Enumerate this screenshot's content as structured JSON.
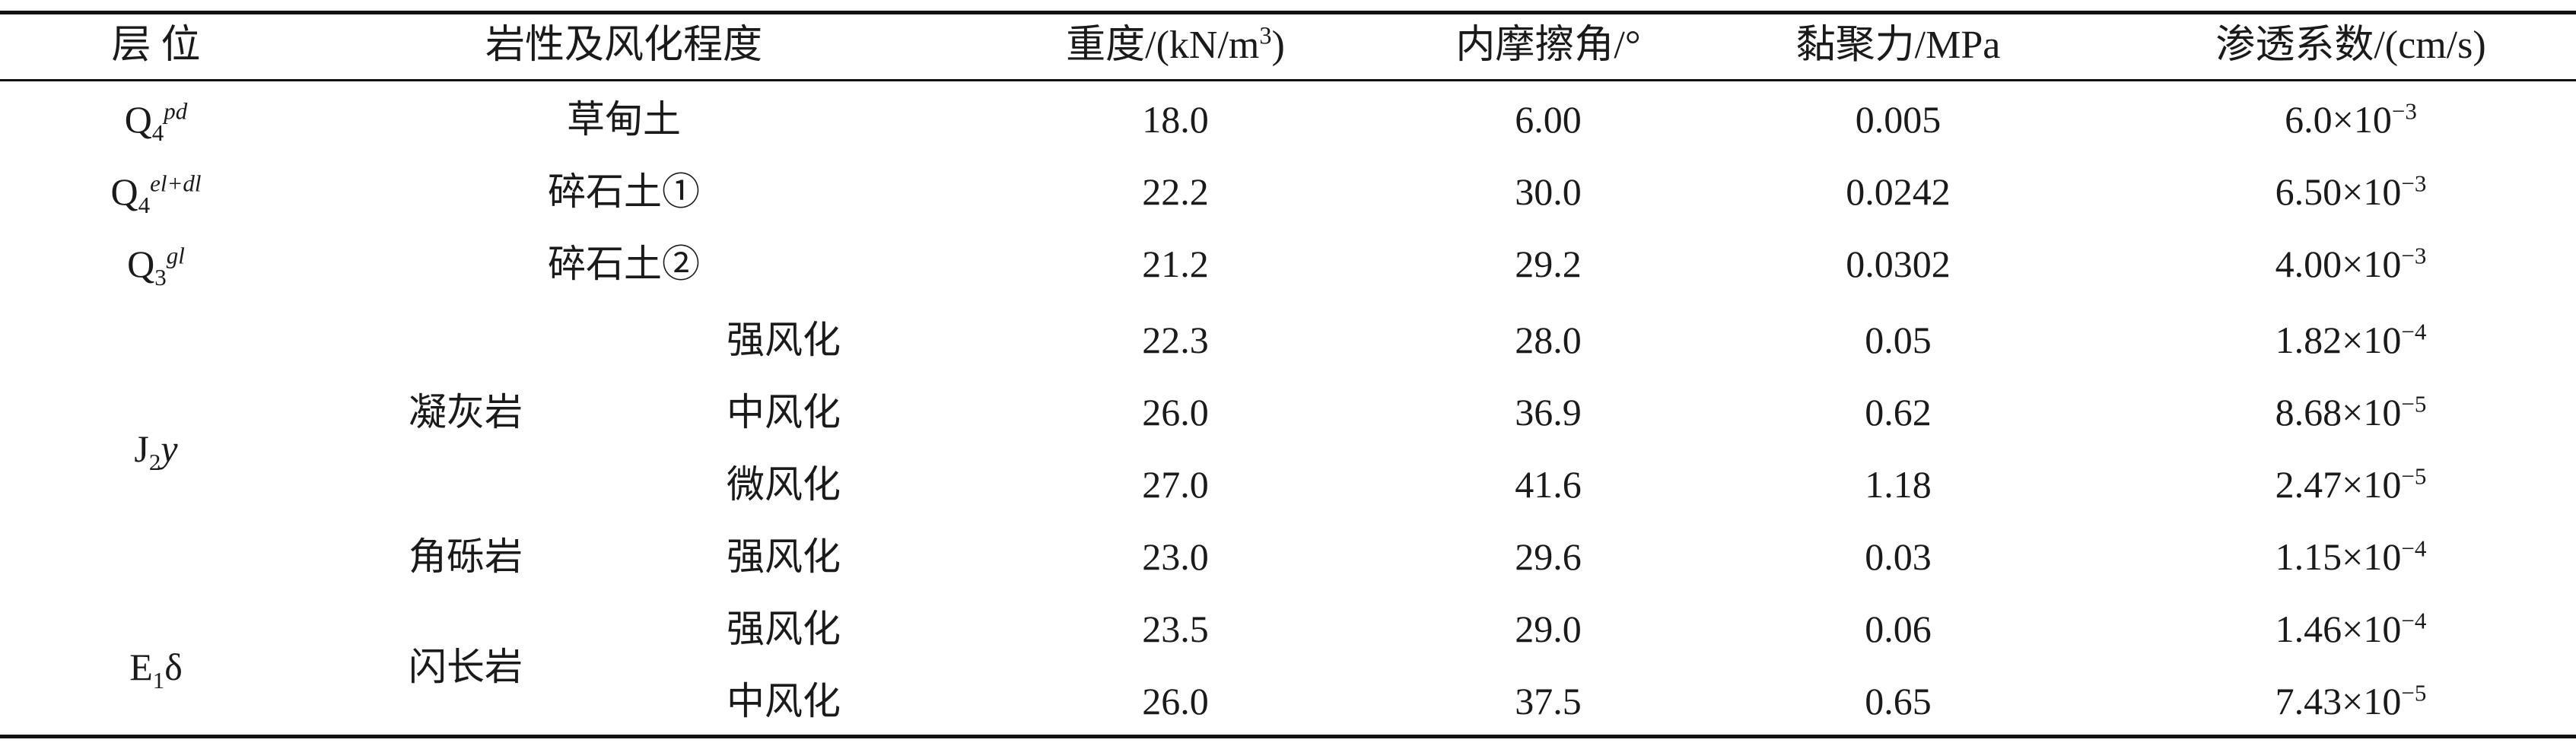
{
  "headers": [
    "层 位",
    "岩性及风化程度",
    "重度/(kN/m",
    "3",
    ")",
    "内摩擦角/°",
    "黏聚力/MPa",
    "渗透系数/(cm/s)"
  ],
  "layers": [
    {
      "base": "Q",
      "sub": "4",
      "sup": "pd"
    },
    {
      "base": "Q",
      "sub": "4",
      "sup": "el+dl"
    },
    {
      "base": "Q",
      "sub": "3",
      "sup": "gl"
    },
    {
      "base": "J",
      "sub": "2",
      "tail": "y"
    },
    {
      "base": "E",
      "sub": "1",
      "tail": "δ"
    }
  ],
  "rock_types": [
    "草甸土",
    "碎石土①",
    "碎石土②",
    "凝灰岩",
    "角砾岩",
    "闪长岩"
  ],
  "weathering": [
    "强风化",
    "中风化",
    "微风化",
    "强风化",
    "强风化",
    "中风化"
  ],
  "rows": [
    {
      "unit_weight": "18.0",
      "friction": "6.00",
      "cohesion": "0.005",
      "perm_base": "6.0×10",
      "perm_exp": "−3"
    },
    {
      "unit_weight": "22.2",
      "friction": "30.0",
      "cohesion": "0.0242",
      "perm_base": "6.50×10",
      "perm_exp": "−3"
    },
    {
      "unit_weight": "21.2",
      "friction": "29.2",
      "cohesion": "0.0302",
      "perm_base": "4.00×10",
      "perm_exp": "−3"
    },
    {
      "unit_weight": "22.3",
      "friction": "28.0",
      "cohesion": "0.05",
      "perm_base": "1.82×10",
      "perm_exp": "−4"
    },
    {
      "unit_weight": "26.0",
      "friction": "36.9",
      "cohesion": "0.62",
      "perm_base": "8.68×10",
      "perm_exp": "−5"
    },
    {
      "unit_weight": "27.0",
      "friction": "41.6",
      "cohesion": "1.18",
      "perm_base": "2.47×10",
      "perm_exp": "−5"
    },
    {
      "unit_weight": "23.0",
      "friction": "29.6",
      "cohesion": "0.03",
      "perm_base": "1.15×10",
      "perm_exp": "−4"
    },
    {
      "unit_weight": "23.5",
      "friction": "29.0",
      "cohesion": "0.06",
      "perm_base": "1.46×10",
      "perm_exp": "−4"
    },
    {
      "unit_weight": "26.0",
      "friction": "37.5",
      "cohesion": "0.65",
      "perm_base": "7.43×10",
      "perm_exp": "−5"
    }
  ]
}
